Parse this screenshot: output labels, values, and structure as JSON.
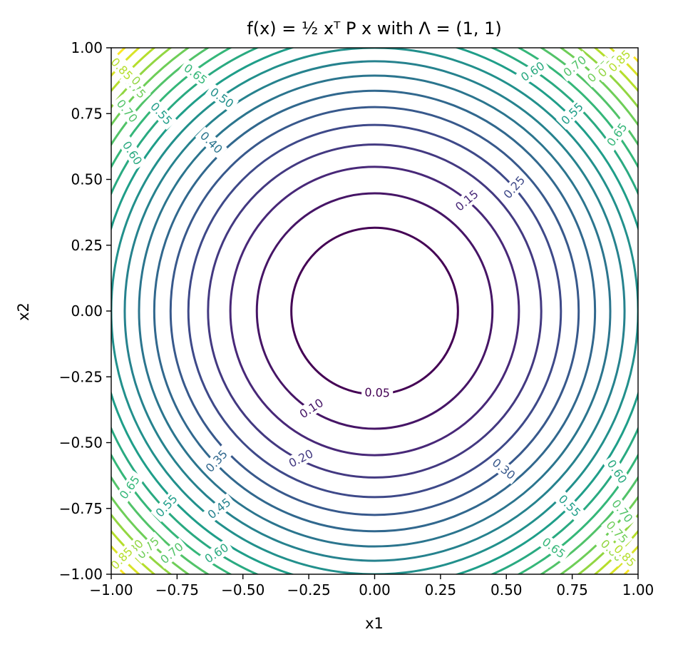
{
  "chart_data": {
    "type": "contour",
    "title": "f(x) = ½ xᵀ P x with Λ = (1, 1)",
    "xlabel": "x1",
    "ylabel": "x2",
    "xlim": [
      -1.0,
      1.0
    ],
    "ylim": [
      -1.0,
      1.0
    ],
    "x_ticks": [
      "−1.00",
      "−0.75",
      "−0.50",
      "−0.25",
      "0.00",
      "0.25",
      "0.50",
      "0.75",
      "1.00"
    ],
    "y_ticks": [
      "−1.00",
      "−0.75",
      "−0.50",
      "−0.25",
      "0.00",
      "0.25",
      "0.50",
      "0.75",
      "1.00"
    ],
    "function": "0.5*(x1^2 + x2^2)",
    "eigenvalues": [
      1,
      1
    ],
    "levels": [
      0.05,
      0.1,
      0.15,
      0.2,
      0.25,
      0.3,
      0.35,
      0.4,
      0.45,
      0.5,
      0.55,
      0.6,
      0.65,
      0.7,
      0.75,
      0.8,
      0.85,
      0.9,
      0.95
    ],
    "colormap": "viridis",
    "colormap_stops": [
      "#440154",
      "#482878",
      "#3e4989",
      "#31688e",
      "#26828e",
      "#1f9e89",
      "#35b779",
      "#6ece58",
      "#b5de2b",
      "#fde725"
    ],
    "grid": false,
    "contour_labels": [
      {
        "text": "0.05",
        "x": 0.01,
        "y": -0.31
      },
      {
        "text": "0.10",
        "x": -0.24,
        "y": -0.37
      },
      {
        "text": "0.15",
        "x": 0.35,
        "y": 0.42
      },
      {
        "text": "0.20",
        "x": -0.28,
        "y": -0.56
      },
      {
        "text": "0.25",
        "x": 0.53,
        "y": 0.47
      },
      {
        "text": "0.30",
        "x": 0.49,
        "y": -0.6
      },
      {
        "text": "0.35",
        "x": -0.6,
        "y": -0.57
      },
      {
        "text": "0.40",
        "x": -0.62,
        "y": 0.64
      },
      {
        "text": "0.45",
        "x": -0.59,
        "y": -0.75
      },
      {
        "text": "0.50",
        "x": -0.58,
        "y": 0.81
      },
      {
        "text": "0.55",
        "x": -0.81,
        "y": 0.75
      },
      {
        "text": "0.55",
        "x": 0.75,
        "y": 0.75
      },
      {
        "text": "0.55",
        "x": -0.79,
        "y": -0.74
      },
      {
        "text": "0.55",
        "x": 0.74,
        "y": -0.74
      },
      {
        "text": "0.60",
        "x": 0.6,
        "y": 0.91
      },
      {
        "text": "0.60",
        "x": -0.92,
        "y": 0.6
      },
      {
        "text": "0.60",
        "x": 0.92,
        "y": -0.61
      },
      {
        "text": "0.60",
        "x": -0.6,
        "y": -0.92
      },
      {
        "text": "0.65",
        "x": -0.68,
        "y": 0.9
      },
      {
        "text": "0.65",
        "x": 0.92,
        "y": 0.67
      },
      {
        "text": "0.65",
        "x": -0.93,
        "y": -0.67
      },
      {
        "text": "0.65",
        "x": 0.68,
        "y": -0.9
      },
      {
        "text": "0.70",
        "x": -0.94,
        "y": 0.76
      },
      {
        "text": "0.70",
        "x": 0.76,
        "y": 0.93
      },
      {
        "text": "0.70",
        "x": -0.77,
        "y": -0.92
      },
      {
        "text": "0.70",
        "x": 0.94,
        "y": -0.76
      },
      {
        "text": "0.75",
        "x": -0.91,
        "y": 0.85
      },
      {
        "text": "0.75",
        "x": 0.85,
        "y": 0.91
      },
      {
        "text": "0.75",
        "x": -0.86,
        "y": -0.9
      },
      {
        "text": "0.75",
        "x": 0.92,
        "y": -0.84
      },
      {
        "text": "0.80",
        "x": -0.93,
        "y": 0.9
      },
      {
        "text": "0.80",
        "x": 0.89,
        "y": 0.93
      },
      {
        "text": "0.80",
        "x": -0.92,
        "y": -0.91
      },
      {
        "text": "0.80",
        "x": 0.9,
        "y": -0.91
      },
      {
        "text": "0.85",
        "x": -0.96,
        "y": 0.92
      },
      {
        "text": "0.85",
        "x": 0.93,
        "y": 0.95
      },
      {
        "text": "0.85",
        "x": -0.96,
        "y": -0.94
      },
      {
        "text": "0.85",
        "x": 0.95,
        "y": -0.93
      }
    ]
  }
}
